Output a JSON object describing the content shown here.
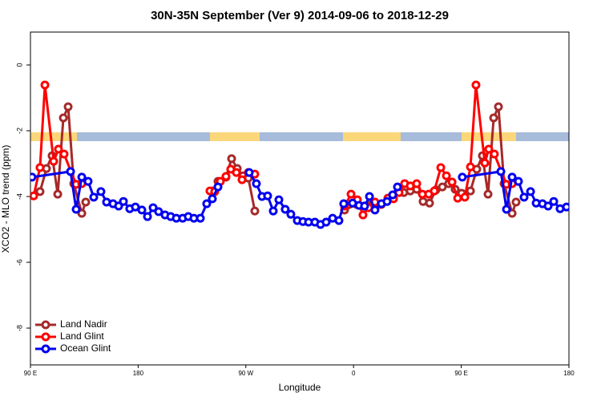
{
  "chart_data": {
    "type": "line",
    "title": "30N-35N September (Ver 9)   2014-09-06 to 2018-12-29",
    "x_label": "Longitude",
    "y_label": "XCO2 - MLO trend (ppm)",
    "xlim": [
      90,
      540
    ],
    "xticks": [
      {
        "value": 90,
        "label": "90 E"
      },
      180,
      {
        "value": 270,
        "label": "90 W"
      },
      {
        "value": 360,
        "label": "0"
      },
      {
        "value": 450,
        "label": "90 E"
      },
      180
    ],
    "ylim": [
      -9.12,
      1.0
    ],
    "yticks": [
      0,
      -2,
      -4,
      -6,
      -8
    ],
    "legend": "bottom-left",
    "series": [
      {
        "name": "Land Nadir",
        "color": "#a52a2a",
        "x": [
          98.0,
          103.4,
          108.1,
          112.8,
          117.5,
          121.5,
          126.2,
          132.9,
          136.2,
          190,
          242.0,
          246.7,
          253.4,
          258.1,
          262.8,
          267.5,
          272.1,
          277.5,
          315,
          352.5,
          362.6,
          372.6,
          382.6,
          392.7,
          402.0,
          407.4,
          412.8,
          418.1,
          423.5,
          428.8,
          434.2,
          439.5,
          444.9,
          450.3,
          457.7,
          463.0,
          467.7,
          472.4,
          477.1,
          481.1,
          485.8,
          492.5,
          495.8
        ],
        "values": [
          -3.85,
          -3.15,
          -2.76,
          -3.93,
          -1.61,
          -1.27,
          -3.61,
          -4.51,
          -4.17,
          null,
          -3.83,
          -3.54,
          -3.41,
          -2.85,
          -3.15,
          -3.37,
          -3.44,
          -4.44,
          null,
          -4.41,
          -4.24,
          -4.27,
          -4.24,
          -4.0,
          -3.88,
          -3.83,
          -3.78,
          -4.15,
          -4.2,
          -3.8,
          -3.71,
          -3.61,
          -3.78,
          -3.9,
          -3.83,
          -3.17,
          -2.76,
          -3.93,
          -1.61,
          -1.27,
          -3.61,
          -4.51,
          -4.17
        ]
      },
      {
        "name": "Land Glint",
        "color": "#ff0000",
        "x": [
          92.7,
          98.0,
          102.1,
          109.4,
          113.4,
          118.1,
          128.2,
          132.9,
          186,
          240.0,
          244.0,
          248.7,
          253.4,
          257.4,
          262.1,
          266.8,
          272.1,
          277.5,
          315,
          352.5,
          357.9,
          363.2,
          367.9,
          372.6,
          377.9,
          383.3,
          388.7,
          393.4,
          398.0,
          402.7,
          407.4,
          412.8,
          417.5,
          422.8,
          427.5,
          432.9,
          437.6,
          442.3,
          447.0,
          453.0,
          457.7,
          462.3,
          469.7,
          473.0,
          477.7,
          487.8,
          492.5
        ],
        "values": [
          -3.98,
          -3.12,
          -0.61,
          -2.93,
          -2.56,
          -2.71,
          -3.63,
          -3.61,
          null,
          -3.83,
          -3.85,
          -3.54,
          -3.39,
          -3.17,
          -3.27,
          -3.49,
          -3.27,
          -3.32,
          null,
          -4.29,
          -3.93,
          -4.1,
          -4.56,
          -4.34,
          -4.17,
          -4.24,
          -4.05,
          -4.07,
          -3.88,
          -3.61,
          -3.68,
          -3.61,
          -3.93,
          -3.93,
          -3.83,
          -3.12,
          -3.37,
          -3.56,
          -4.05,
          -4.02,
          -3.1,
          -0.61,
          -2.98,
          -2.56,
          -2.71,
          -3.63,
          -3.61
        ]
      },
      {
        "name": "Ocean Glint",
        "color": "#0000ee",
        "x": [
          91.3,
          123.5,
          128.2,
          132.9,
          138.2,
          142.9,
          148.9,
          153.6,
          159.0,
          163.7,
          167.7,
          173.0,
          177.7,
          183.1,
          187.8,
          192.5,
          197.1,
          202.5,
          207.2,
          211.9,
          217.2,
          221.9,
          226.6,
          232.0,
          237.3,
          242.0,
          246.7,
          260,
          272.8,
          278.8,
          283.5,
          288.2,
          292.9,
          297.6,
          302.9,
          307.6,
          313.0,
          317.7,
          322.4,
          327.7,
          332.4,
          337.1,
          342.5,
          347.8,
          351.8,
          359.2,
          364.6,
          369.2,
          373.3,
          377.9,
          383.3,
          388.0,
          392.7,
          396.7,
          420,
          450.9,
          483.1,
          487.8,
          492.5,
          497.8,
          502.5,
          507.9,
          512.6,
          517.9,
          522.6,
          527.3,
          532.6,
          538.0
        ],
        "values": [
          -3.41,
          -3.24,
          -4.39,
          -3.41,
          -3.54,
          -4.02,
          -3.85,
          -4.17,
          -4.22,
          -4.29,
          -4.15,
          -4.37,
          -4.32,
          -4.41,
          -4.61,
          -4.34,
          -4.46,
          -4.56,
          -4.61,
          -4.66,
          -4.66,
          -4.61,
          -4.66,
          -4.66,
          -4.22,
          -4.07,
          -3.71,
          null,
          -3.27,
          -3.61,
          -4.0,
          -3.98,
          -4.44,
          -4.1,
          -4.39,
          -4.54,
          -4.73,
          -4.76,
          -4.78,
          -4.78,
          -4.85,
          -4.78,
          -4.66,
          -4.73,
          -4.22,
          -4.2,
          -4.27,
          -4.29,
          -4.0,
          -4.41,
          -4.22,
          -4.15,
          -3.95,
          -3.71,
          null,
          -3.41,
          -3.24,
          -4.39,
          -3.41,
          -3.54,
          -4.02,
          -3.85,
          -4.2,
          -4.22,
          -4.29,
          -4.15,
          -4.37,
          -4.32
        ]
      }
    ]
  }
}
